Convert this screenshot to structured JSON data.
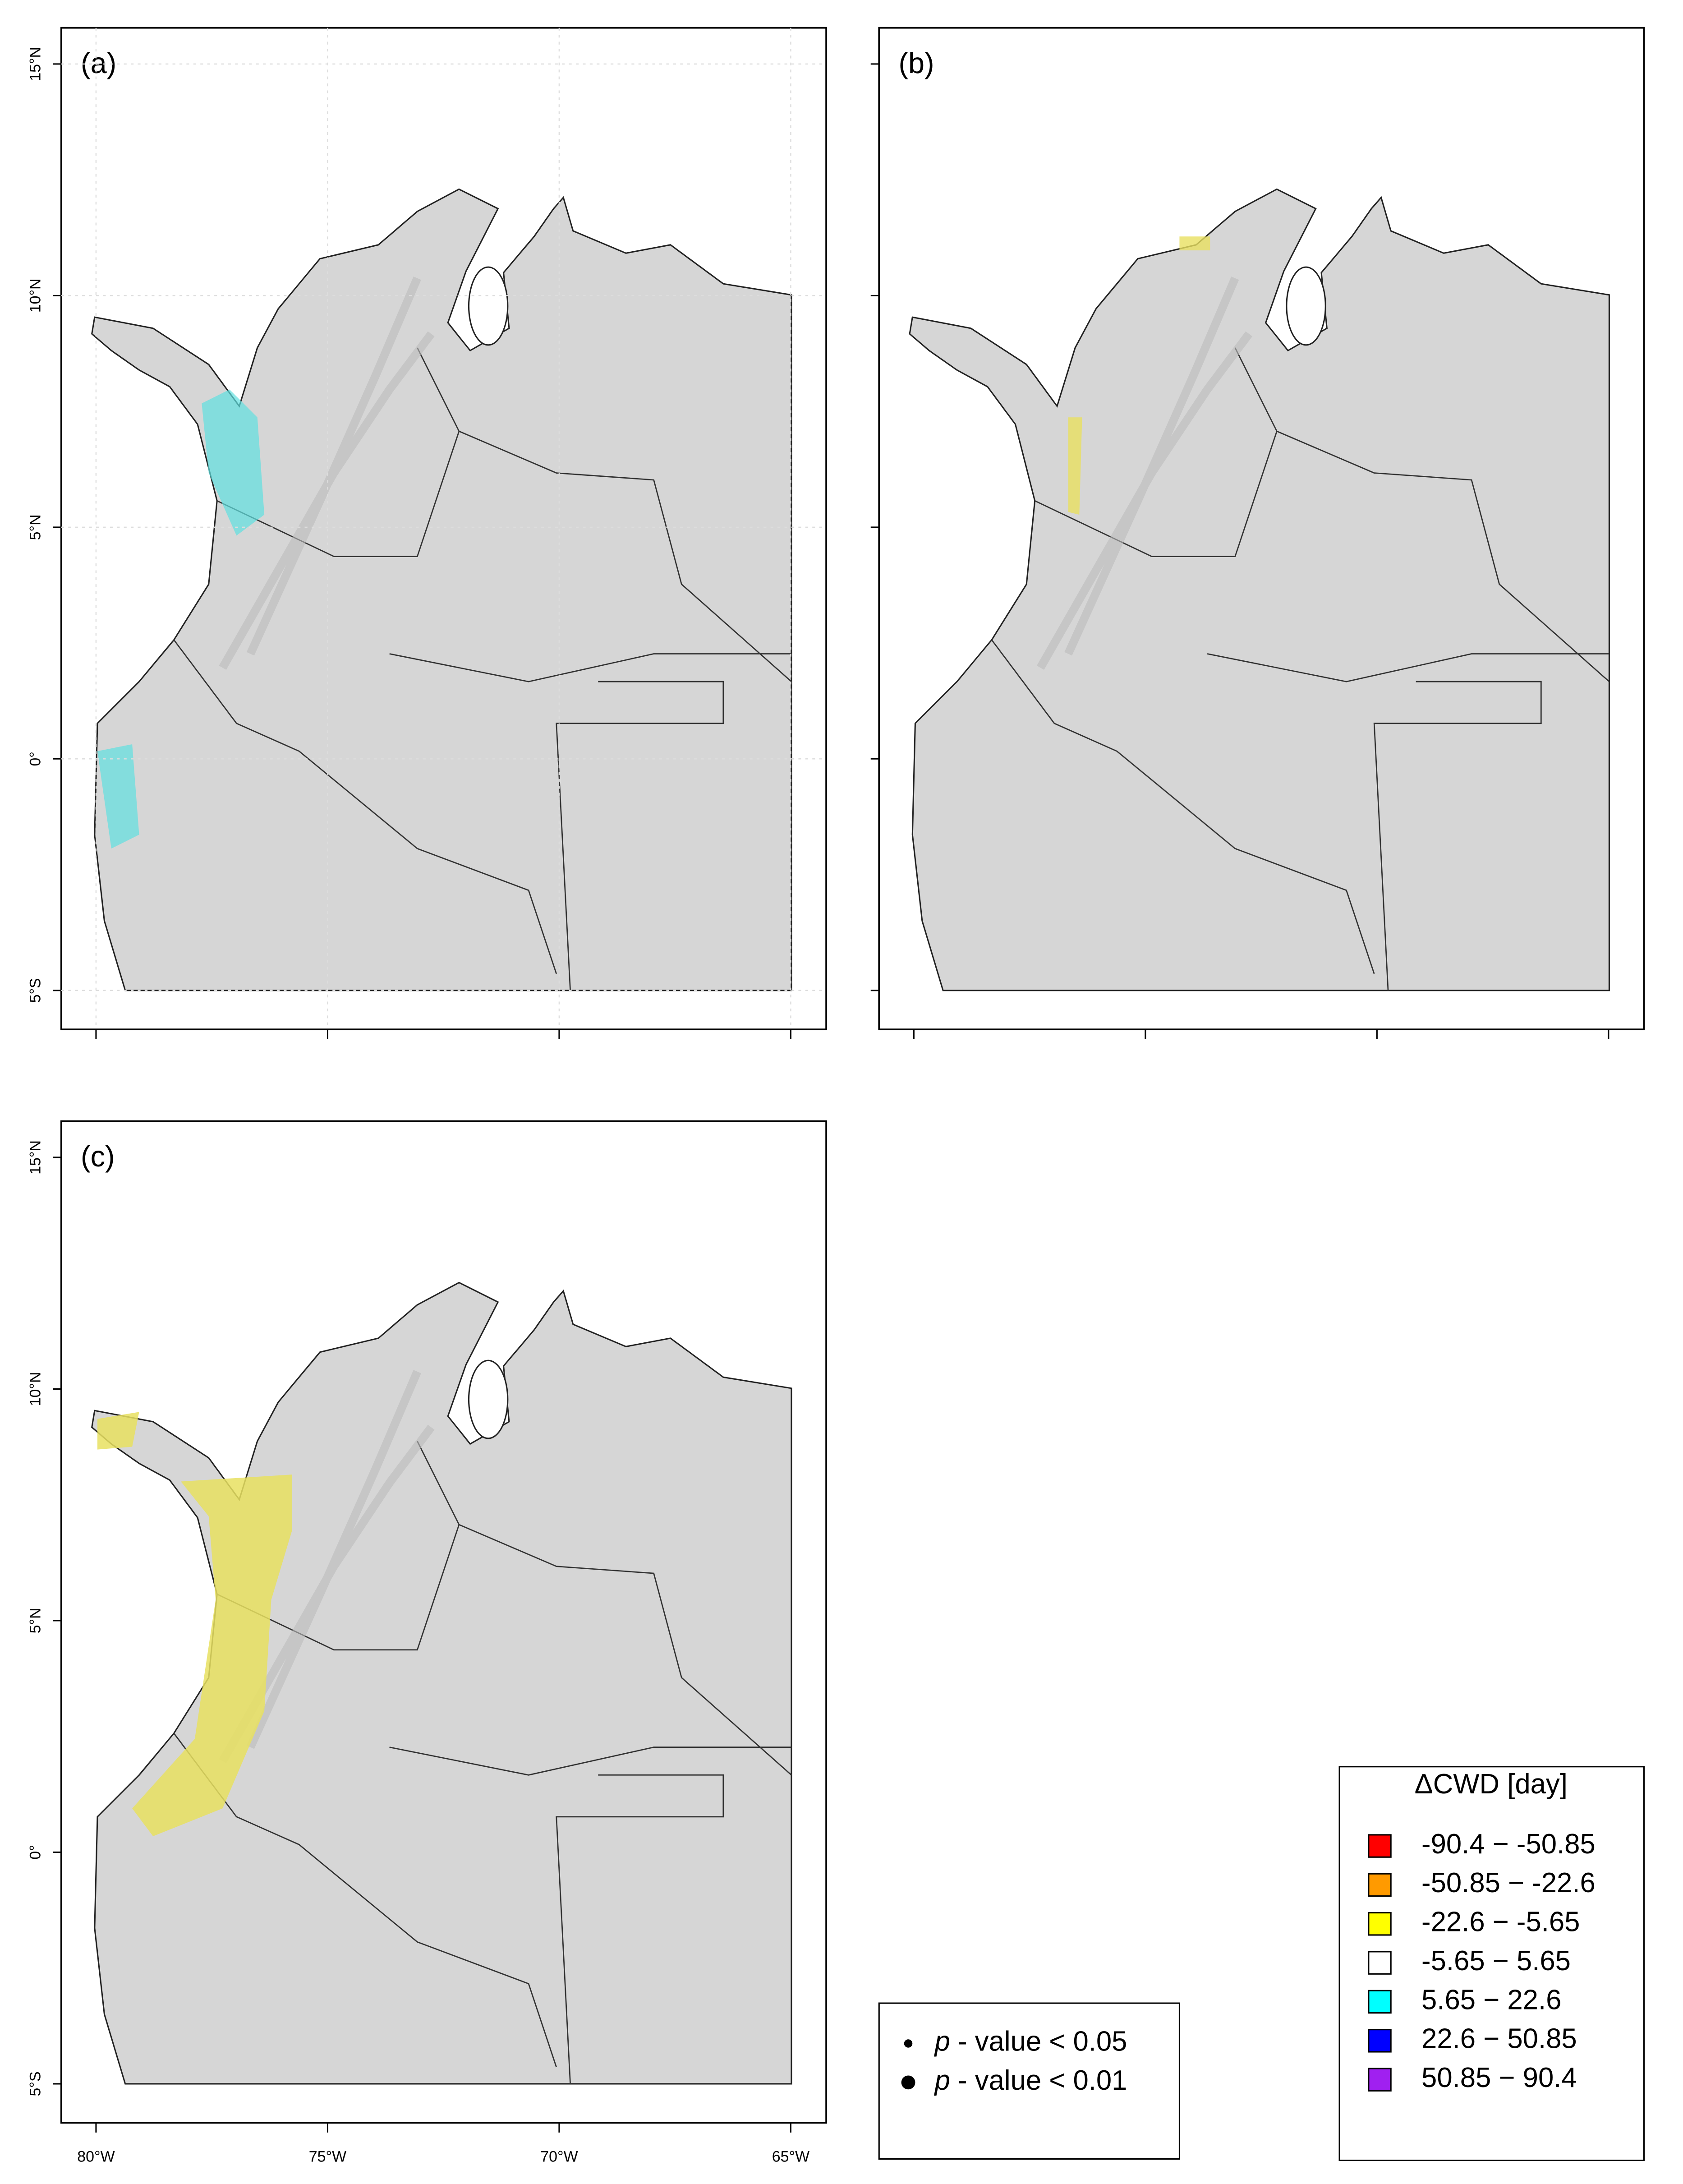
{
  "panels": [
    {
      "label": "(a)"
    },
    {
      "label": "(b)"
    },
    {
      "label": "(c)"
    }
  ],
  "axes": {
    "lat_ticks": [
      "15°N",
      "10°N",
      "5°N",
      "0°",
      "5°S"
    ],
    "lon_ticks": [
      "80°W",
      "75°W",
      "70°W",
      "65°W"
    ]
  },
  "legend": {
    "title": "ΔCWD [day]",
    "items": [
      {
        "label": "-90.4 − -50.85",
        "color": "#ff0000"
      },
      {
        "label": "-50.85 − -22.6",
        "color": "#ff9a00"
      },
      {
        "label": "-22.6 − -5.65",
        "color": "#ffff00"
      },
      {
        "label": "-5.65 − 5.65",
        "color": "#ffffff"
      },
      {
        "label": "5.65 − 22.6",
        "color": "#00ffff"
      },
      {
        "label": "22.6 − 50.85",
        "color": "#0000ff"
      },
      {
        "label": "50.85 − 90.4",
        "color": "#a020f0"
      }
    ]
  },
  "p_legend": {
    "items": [
      {
        "symbol": "p",
        "text": " - value < 0.05"
      },
      {
        "symbol": "p",
        "text": " - value < 0.01"
      }
    ]
  }
}
